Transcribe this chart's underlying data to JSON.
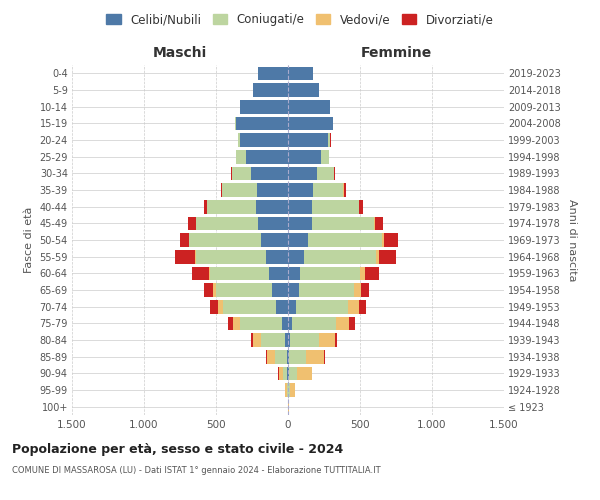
{
  "age_groups": [
    "100+",
    "95-99",
    "90-94",
    "85-89",
    "80-84",
    "75-79",
    "70-74",
    "65-69",
    "60-64",
    "55-59",
    "50-54",
    "45-49",
    "40-44",
    "35-39",
    "30-34",
    "25-29",
    "20-24",
    "15-19",
    "10-14",
    "5-9",
    "0-4"
  ],
  "birth_years": [
    "≤ 1923",
    "1924-1928",
    "1929-1933",
    "1934-1938",
    "1939-1943",
    "1944-1948",
    "1949-1953",
    "1954-1958",
    "1959-1963",
    "1964-1968",
    "1969-1973",
    "1974-1978",
    "1979-1983",
    "1984-1988",
    "1989-1993",
    "1994-1998",
    "1999-2003",
    "2004-2008",
    "2009-2013",
    "2014-2018",
    "2019-2023"
  ],
  "colors": {
    "celibi": "#4e79a7",
    "coniugati": "#bdd5a0",
    "vedovi": "#f0c070",
    "divorziati": "#cc2222"
  },
  "maschi": {
    "celibi": [
      2,
      3,
      5,
      10,
      20,
      45,
      80,
      110,
      130,
      150,
      185,
      210,
      220,
      215,
      260,
      290,
      330,
      360,
      330,
      245,
      210
    ],
    "coniugati": [
      0,
      5,
      30,
      80,
      170,
      290,
      370,
      390,
      410,
      490,
      500,
      430,
      340,
      240,
      130,
      70,
      20,
      5,
      0,
      0,
      0
    ],
    "vedovi": [
      1,
      10,
      30,
      55,
      55,
      50,
      35,
      20,
      10,
      5,
      3,
      2,
      1,
      0,
      0,
      0,
      0,
      0,
      0,
      0,
      0
    ],
    "divorziati": [
      0,
      0,
      2,
      5,
      15,
      30,
      55,
      65,
      120,
      140,
      60,
      50,
      20,
      10,
      5,
      2,
      0,
      0,
      0,
      0,
      0
    ]
  },
  "femmine": {
    "celibi": [
      2,
      3,
      5,
      8,
      15,
      30,
      55,
      75,
      80,
      110,
      140,
      165,
      170,
      175,
      200,
      230,
      280,
      310,
      290,
      215,
      175
    ],
    "coniugati": [
      0,
      10,
      60,
      120,
      200,
      300,
      360,
      380,
      420,
      500,
      510,
      430,
      320,
      210,
      120,
      55,
      15,
      5,
      0,
      0,
      0
    ],
    "vedovi": [
      5,
      35,
      100,
      120,
      110,
      95,
      75,
      55,
      35,
      20,
      15,
      8,
      3,
      1,
      0,
      0,
      0,
      0,
      0,
      0,
      0
    ],
    "divorziati": [
      0,
      0,
      3,
      8,
      15,
      40,
      50,
      55,
      100,
      120,
      100,
      55,
      25,
      15,
      5,
      2,
      1,
      0,
      0,
      0,
      0
    ]
  },
  "xlim": 1500,
  "title": "Popolazione per età, sesso e stato civile - 2024",
  "subtitle": "COMUNE DI MASSAROSA (LU) - Dati ISTAT 1° gennaio 2024 - Elaborazione TUTTITALIA.IT",
  "xlabel_left": "Maschi",
  "xlabel_right": "Femmine",
  "ylabel_left": "Fasce di età",
  "ylabel_right": "Anni di nascita",
  "xtick_labels": [
    "1.500",
    "1.000",
    "500",
    "0",
    "500",
    "1.000",
    "1.500"
  ],
  "background_color": "#ffffff",
  "grid_color": "#cccccc"
}
